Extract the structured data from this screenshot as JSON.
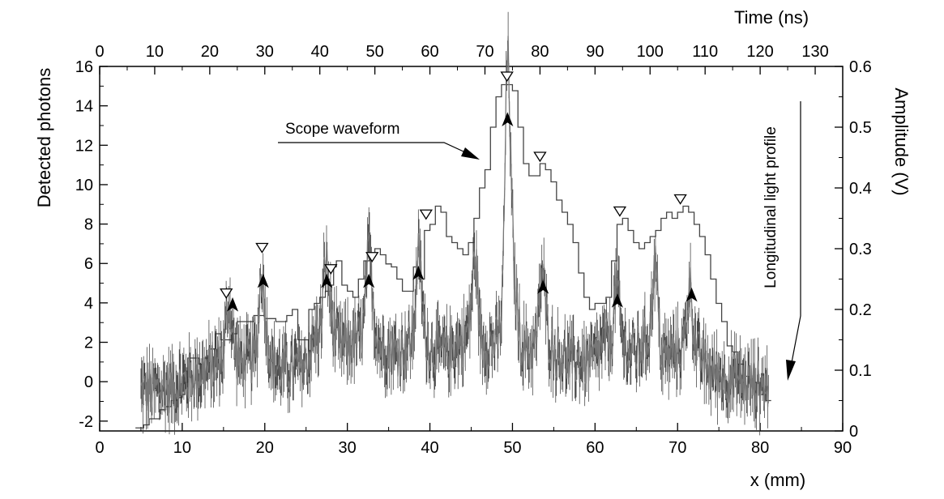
{
  "chart_data": {
    "type": "line",
    "axes": {
      "x_bottom": {
        "label": "x (mm)",
        "range": [
          0,
          90
        ],
        "ticks": [
          "0",
          "10",
          "20",
          "30",
          "40",
          "50",
          "60",
          "70",
          "80",
          "90"
        ]
      },
      "x_top": {
        "label": "Time (ns)",
        "range": [
          0,
          135
        ],
        "ticks": [
          "0",
          "10",
          "20",
          "30",
          "40",
          "50",
          "60",
          "70",
          "80",
          "90",
          "100",
          "110",
          "120",
          "130"
        ]
      },
      "y_left": {
        "label": "Detected photons",
        "range": [
          -2.5,
          16
        ],
        "ticks": [
          "-2",
          "0",
          "2",
          "4",
          "6",
          "8",
          "10",
          "12",
          "14",
          "16"
        ]
      },
      "y_right": {
        "label": "Amplitude (V)",
        "range": [
          0,
          0.6
        ],
        "ticks": [
          "0",
          "0.1",
          "0.2",
          "0.3",
          "0.4",
          "0.5",
          "0.6"
        ]
      }
    },
    "series": [
      {
        "name": "Scope waveform",
        "axis": "top-right",
        "style": "step",
        "points": [
          [
            6.5,
            0.005
          ],
          [
            8,
            0.01
          ],
          [
            9,
            0.02
          ],
          [
            10,
            0.02
          ],
          [
            11,
            0.035
          ],
          [
            12,
            0.04
          ],
          [
            13,
            0.05
          ],
          [
            14,
            0.055
          ],
          [
            15,
            0.06
          ],
          [
            15.5,
            0.08
          ],
          [
            16,
            0.12
          ],
          [
            17,
            0.12
          ],
          [
            18,
            0.11
          ],
          [
            19,
            0.12
          ],
          [
            20,
            0.135
          ],
          [
            21,
            0.16
          ],
          [
            22,
            0.15
          ],
          [
            24,
            0.16
          ],
          [
            25,
            0.18
          ],
          [
            26,
            0.18
          ],
          [
            28,
            0.19
          ],
          [
            30,
            0.185
          ],
          [
            32,
            0.18
          ],
          [
            34,
            0.19
          ],
          [
            35,
            0.2
          ],
          [
            36,
            0.15
          ],
          [
            37,
            0.15
          ],
          [
            38,
            0.2
          ],
          [
            39,
            0.21
          ],
          [
            40,
            0.22
          ],
          [
            41,
            0.23
          ],
          [
            42,
            0.24
          ],
          [
            42.5,
            0.27
          ],
          [
            43,
            0.28
          ],
          [
            44,
            0.24
          ],
          [
            45,
            0.23
          ],
          [
            46,
            0.22
          ],
          [
            47,
            0.25
          ],
          [
            48,
            0.28
          ],
          [
            49,
            0.29
          ],
          [
            50,
            0.3
          ],
          [
            51,
            0.29
          ],
          [
            52,
            0.275
          ],
          [
            53,
            0.27
          ],
          [
            54,
            0.25
          ],
          [
            55,
            0.23
          ],
          [
            56,
            0.23
          ],
          [
            57,
            0.27
          ],
          [
            58,
            0.25
          ],
          [
            59,
            0.33
          ],
          [
            60,
            0.34
          ],
          [
            61,
            0.37
          ],
          [
            62,
            0.36
          ],
          [
            63,
            0.32
          ],
          [
            64,
            0.31
          ],
          [
            65,
            0.3
          ],
          [
            66,
            0.29
          ],
          [
            67,
            0.31
          ],
          [
            68,
            0.35
          ],
          [
            69,
            0.4
          ],
          [
            70,
            0.43
          ],
          [
            71,
            0.5
          ],
          [
            72,
            0.55
          ],
          [
            73,
            0.57
          ],
          [
            74,
            0.57
          ],
          [
            75,
            0.56
          ],
          [
            76,
            0.5
          ],
          [
            77,
            0.44
          ],
          [
            78,
            0.42
          ],
          [
            79,
            0.42
          ],
          [
            80,
            0.44
          ],
          [
            81,
            0.43
          ],
          [
            82,
            0.41
          ],
          [
            83,
            0.38
          ],
          [
            84,
            0.36
          ],
          [
            85,
            0.34
          ],
          [
            86,
            0.31
          ],
          [
            87,
            0.26
          ],
          [
            88,
            0.22
          ],
          [
            89,
            0.2
          ],
          [
            90,
            0.21
          ],
          [
            91,
            0.21
          ],
          [
            92,
            0.22
          ],
          [
            93,
            0.28
          ],
          [
            94,
            0.34
          ],
          [
            95,
            0.35
          ],
          [
            96,
            0.33
          ],
          [
            97,
            0.31
          ],
          [
            98,
            0.3
          ],
          [
            99,
            0.31
          ],
          [
            100,
            0.32
          ],
          [
            101,
            0.33
          ],
          [
            102,
            0.35
          ],
          [
            103,
            0.36
          ],
          [
            104,
            0.35
          ],
          [
            105,
            0.36
          ],
          [
            106,
            0.37
          ],
          [
            107,
            0.36
          ],
          [
            108,
            0.34
          ],
          [
            109,
            0.32
          ],
          [
            110,
            0.29
          ],
          [
            111,
            0.25
          ],
          [
            112,
            0.21
          ],
          [
            113,
            0.18
          ],
          [
            114,
            0.14
          ],
          [
            115,
            0.13
          ],
          [
            116,
            0.11
          ],
          [
            117,
            0.09
          ],
          [
            118,
            0.08
          ],
          [
            119,
            0.08
          ],
          [
            120,
            0.06
          ],
          [
            121,
            0.05
          ],
          [
            122,
            0.05
          ]
        ]
      },
      {
        "name": "Longitudinal light profile",
        "axis": "bottom-left",
        "style": "noisy-profile",
        "baseline_points": [
          [
            5,
            -0.5
          ],
          [
            7,
            -0.4
          ],
          [
            9,
            -0.3
          ],
          [
            11,
            0.2
          ],
          [
            13,
            0.6
          ],
          [
            15,
            1.2
          ],
          [
            16,
            1.8
          ],
          [
            17,
            1
          ],
          [
            19,
            1.2
          ],
          [
            20,
            2.5
          ],
          [
            21,
            0.8
          ],
          [
            23,
            0.6
          ],
          [
            25,
            0.9
          ],
          [
            26,
            2.2
          ],
          [
            27,
            2.5
          ],
          [
            28,
            3.1
          ],
          [
            29,
            1.8
          ],
          [
            31,
            2
          ],
          [
            32,
            2.5
          ],
          [
            33,
            3.2
          ],
          [
            34,
            1.8
          ],
          [
            36,
            1.5
          ],
          [
            38,
            2
          ],
          [
            39,
            3
          ],
          [
            40,
            1.6
          ],
          [
            42,
            1.5
          ],
          [
            44,
            2
          ],
          [
            45,
            3
          ],
          [
            46,
            1.8
          ],
          [
            48,
            2
          ],
          [
            49,
            3
          ],
          [
            50,
            6
          ],
          [
            51,
            2
          ],
          [
            52,
            1.5
          ],
          [
            53,
            2
          ],
          [
            54,
            2.5
          ],
          [
            55,
            1.5
          ],
          [
            57,
            1
          ],
          [
            59,
            1
          ],
          [
            60,
            1.2
          ],
          [
            61,
            2
          ],
          [
            62,
            1.8
          ],
          [
            63,
            2.2
          ],
          [
            64,
            1.5
          ],
          [
            65,
            1.5
          ],
          [
            66,
            2
          ],
          [
            67,
            2.5
          ],
          [
            68,
            1.2
          ],
          [
            70,
            1.5
          ],
          [
            71,
            2
          ],
          [
            72,
            1.6
          ],
          [
            74,
            0.5
          ],
          [
            76,
            0.2
          ],
          [
            78,
            0
          ],
          [
            80,
            -0.2
          ],
          [
            81,
            -0.2
          ]
        ],
        "peaks": [
          [
            15.6,
            2.4
          ],
          [
            19.6,
            3.4
          ],
          [
            27.4,
            3.4
          ],
          [
            32.6,
            3.6
          ],
          [
            38.6,
            3.8
          ],
          [
            45.5,
            3.8
          ],
          [
            49.4,
            12.3
          ],
          [
            53.6,
            3.2
          ],
          [
            62.6,
            2.8
          ],
          [
            67.3,
            3.8
          ],
          [
            71.5,
            3
          ]
        ]
      }
    ],
    "markers": {
      "open_triangles": {
        "axis": "top-right",
        "points": [
          [
            23,
            0.215
          ],
          [
            29.5,
            0.29
          ],
          [
            42,
            0.255
          ],
          [
            49.5,
            0.275
          ],
          [
            59.3,
            0.345
          ],
          [
            74,
            0.572
          ],
          [
            80,
            0.44
          ],
          [
            94.5,
            0.35
          ],
          [
            105.5,
            0.37
          ]
        ]
      },
      "arrows": {
        "axis": "bottom-left",
        "points": [
          [
            16.1,
            3.9
          ],
          [
            19.8,
            5.1
          ],
          [
            27.5,
            5.1
          ],
          [
            32.6,
            5.1
          ],
          [
            38.6,
            5.5
          ],
          [
            49.4,
            13.3
          ],
          [
            53.7,
            4.8
          ],
          [
            62.7,
            4.1
          ],
          [
            71.7,
            4.4
          ]
        ]
      }
    },
    "annotations": [
      {
        "text": "Scope waveform",
        "target_series": "Scope waveform"
      },
      {
        "text": "Longitudinal light profile",
        "target_series": "Longitudinal light profile"
      }
    ],
    "grid": false,
    "legend": "none"
  }
}
